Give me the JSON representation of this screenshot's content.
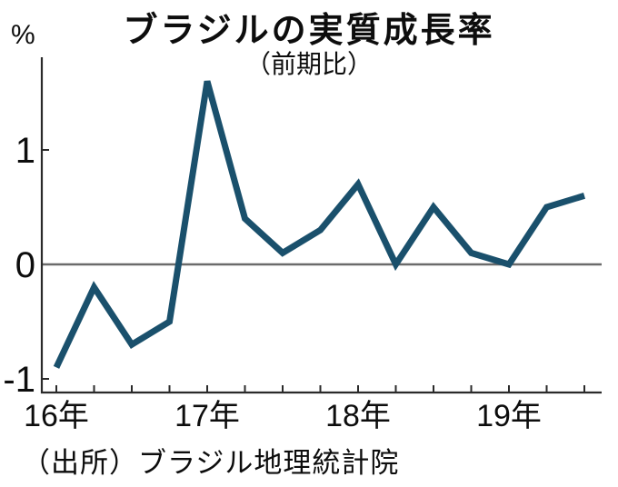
{
  "page": {
    "title": "ブラジルの実質成長率",
    "subtitle": "（前期比）",
    "y_unit": "%",
    "source": "（出所）ブラジル地理統計院"
  },
  "chart_data": {
    "type": "line",
    "title": "ブラジルの実質成長率",
    "subtitle": "（前期比）",
    "ylabel": "%",
    "categories": [
      "2016Q1",
      "2016Q2",
      "2016Q3",
      "2016Q4",
      "2017Q1",
      "2017Q2",
      "2017Q3",
      "2017Q4",
      "2018Q1",
      "2018Q2",
      "2018Q3",
      "2018Q4",
      "2019Q1",
      "2019Q2",
      "2019Q3"
    ],
    "values": [
      -0.9,
      -0.2,
      -0.7,
      -0.5,
      1.6,
      0.4,
      0.1,
      0.3,
      0.7,
      0.0,
      0.5,
      0.1,
      0.0,
      0.5,
      0.6
    ],
    "yticks": [
      {
        "value": 1,
        "label": "1"
      },
      {
        "value": 0,
        "label": "0"
      },
      {
        "value": -1,
        "label": "-1"
      }
    ],
    "xticks": [
      {
        "index": 0,
        "label": "16年"
      },
      {
        "index": 4,
        "label": "17年"
      },
      {
        "index": 8,
        "label": "18年"
      },
      {
        "index": 12,
        "label": "19年"
      }
    ],
    "ylim": [
      -1.12,
      1.81
    ],
    "grid": "zero-line-only",
    "legend": "none",
    "line_color": "#1a506c",
    "zero_line_color": "#6b6b6b",
    "axis_color": "#2a2a2a",
    "text_color": "#0d0d0d",
    "source": "（出所）ブラジル地理統計院"
  }
}
